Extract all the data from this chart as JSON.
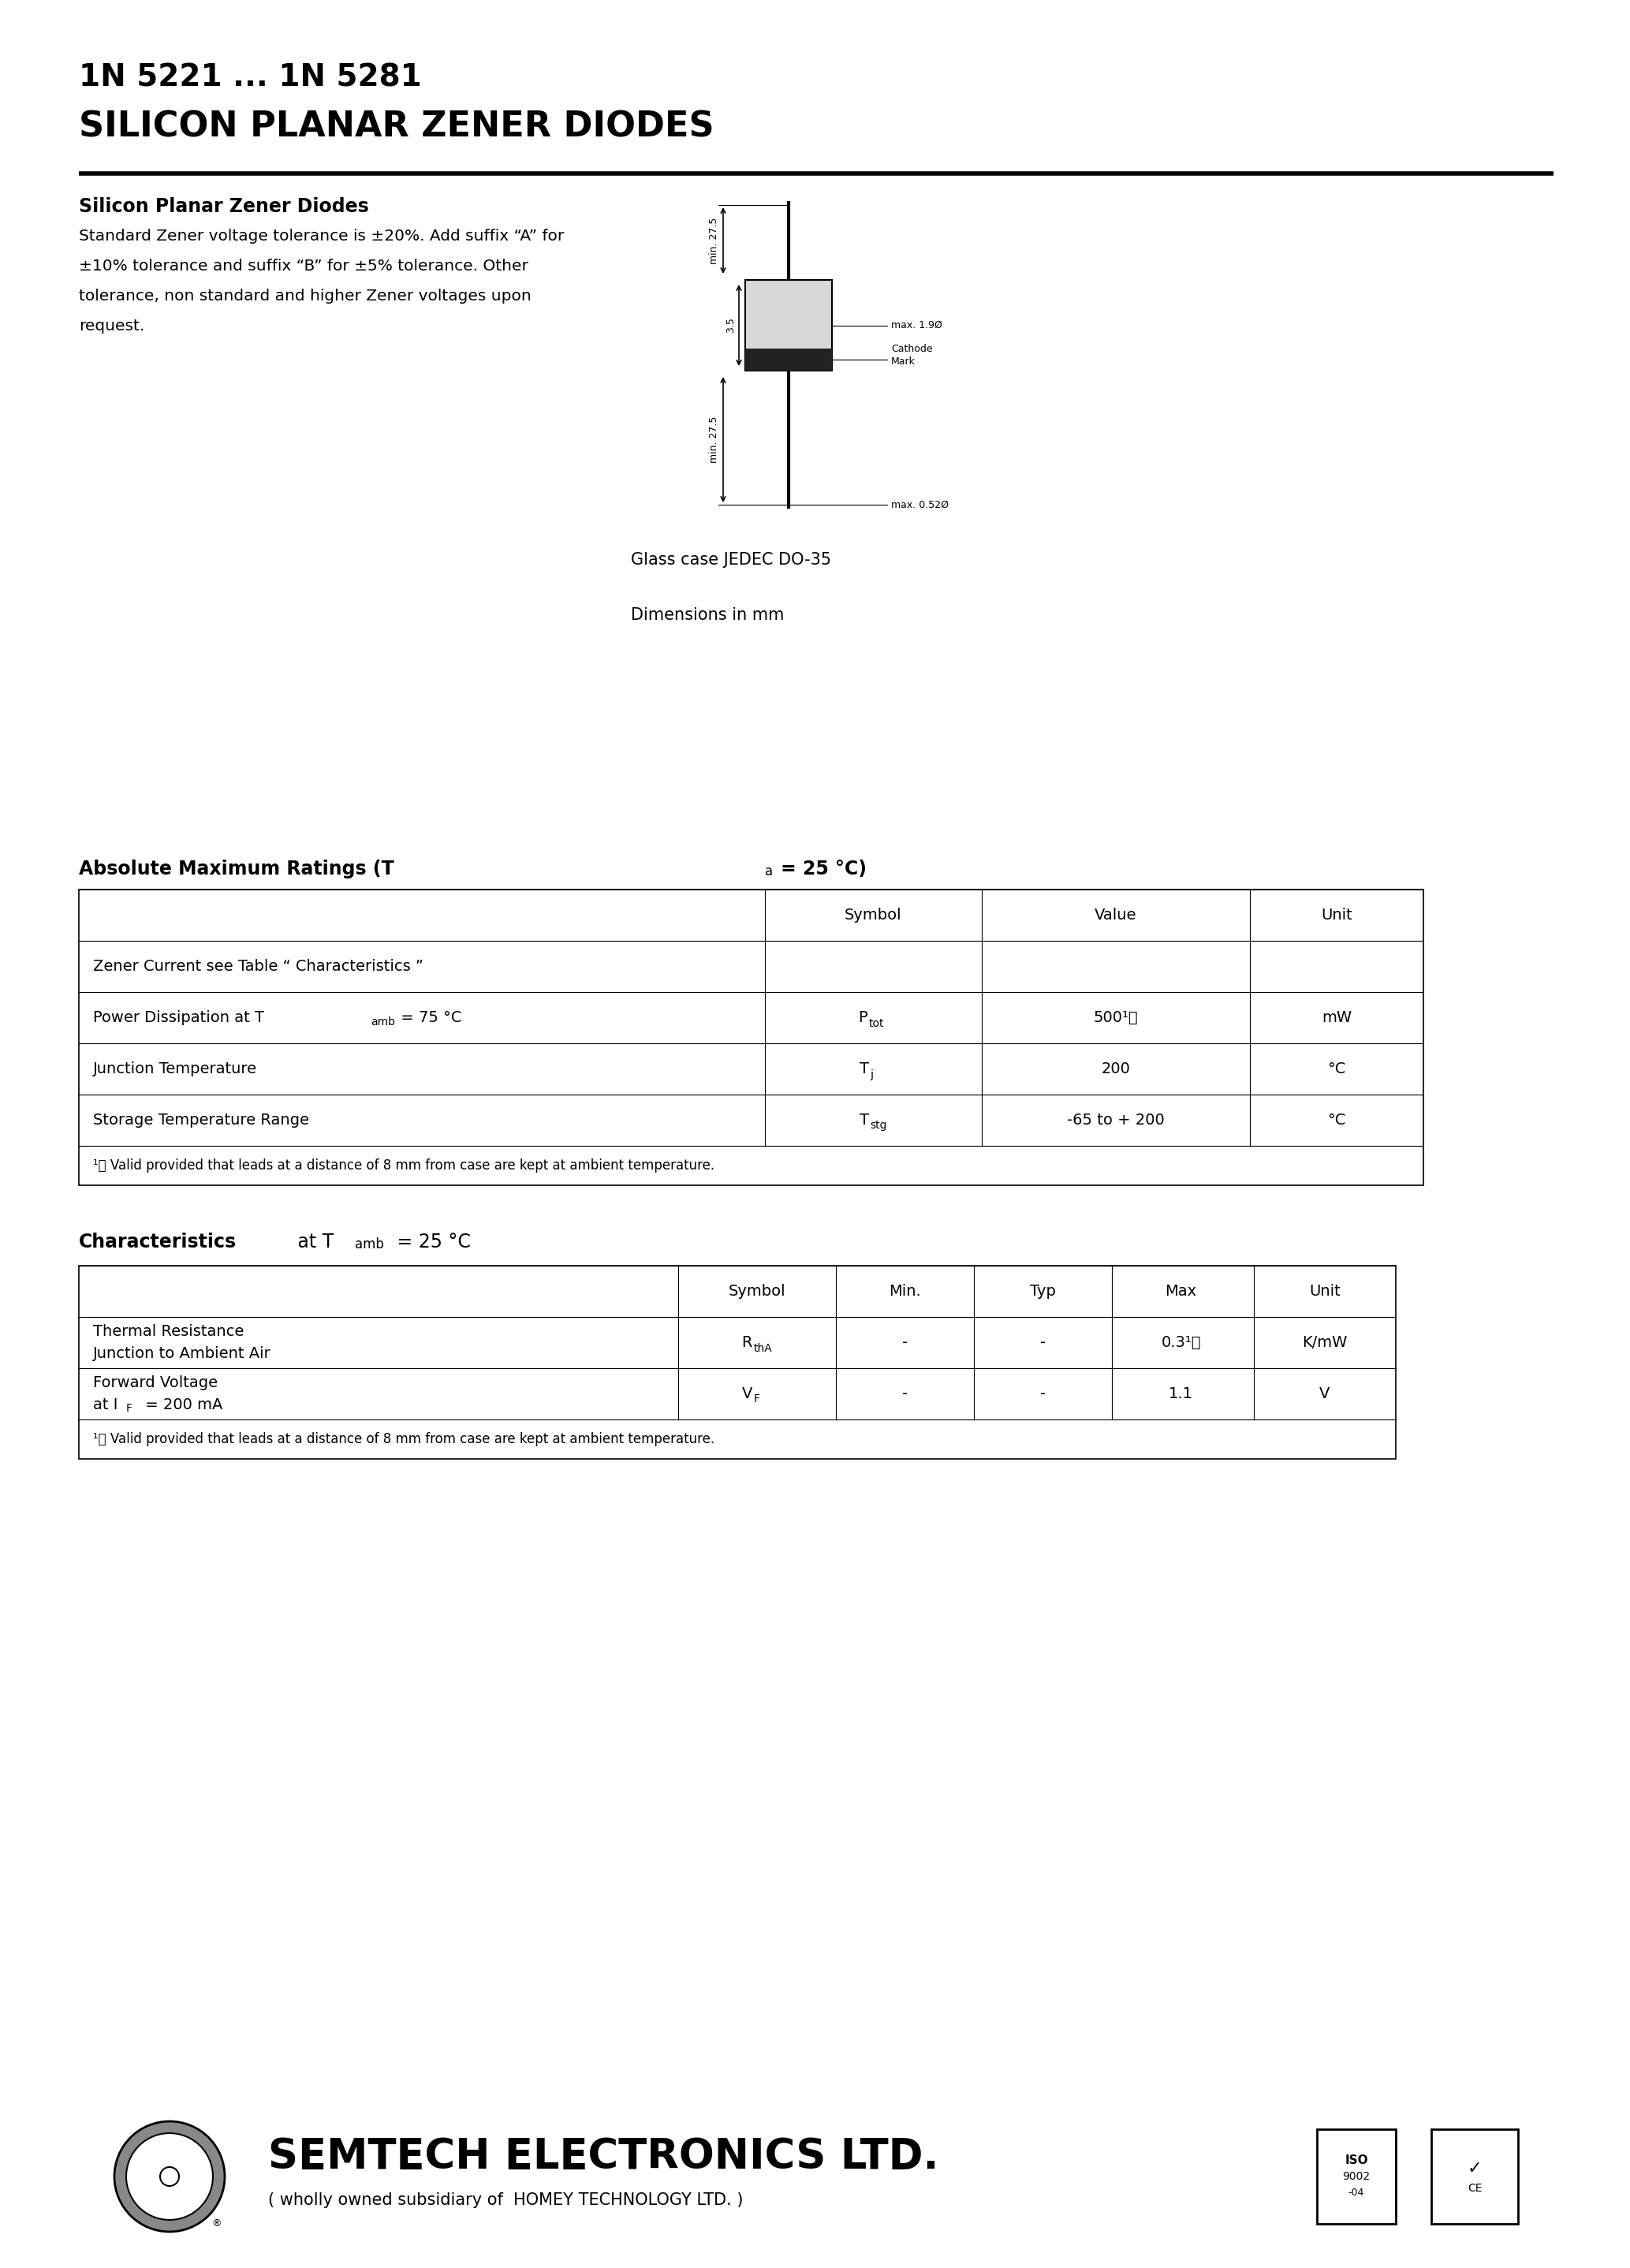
{
  "title_line1": "1N 5221 ... 1N 5281",
  "title_line2": "SILICON PLANAR ZENER DIODES",
  "section1_title": "Silicon Planar Zener Diodes",
  "section1_body_line1": "Standard Zener voltage tolerance is ±20%. Add suffix “A” for",
  "section1_body_line2": "±10% tolerance and suffix “B” for ±5% tolerance. Other",
  "section1_body_line3": "tolerance, non standard and higher Zener voltages upon",
  "section1_body_line4": "request.",
  "glass_case_text": "Glass case JEDEC DO-35",
  "dimensions_text": "Dimensions in mm",
  "abs_max_title": "Absolute Maximum Ratings (T",
  "abs_max_sub": "a",
  "abs_max_end": "= 25 °C)",
  "abs_table_headers": [
    "",
    "Symbol",
    "Value",
    "Unit"
  ],
  "abs_row0_label": "Zener Current see Table “ Characteristics ”",
  "abs_row1_label": "Power Dissipation at T",
  "abs_row1_sub": "amb",
  "abs_row1_end": " = 75 °C",
  "abs_row1_sym": "P",
  "abs_row1_symsub": "tot",
  "abs_row1_val": "500¹⧠",
  "abs_row1_unit": "mW",
  "abs_row2_label": "Junction Temperature",
  "abs_row2_sym": "T",
  "abs_row2_symsub": "j",
  "abs_row2_val": "200",
  "abs_row2_unit": "°C",
  "abs_row3_label": "Storage Temperature Range",
  "abs_row3_sym": "T",
  "abs_row3_symsub": "stg",
  "abs_row3_val": "-65 to + 200",
  "abs_row3_unit": "°C",
  "abs_footnote": "¹⧠ Valid provided that leads at a distance of 8 mm from case are kept at ambient temperature.",
  "char_title": "Characteristics",
  "char_title_at": " at T",
  "char_title_sub": "amb",
  "char_title_end": " = 25 °C",
  "char_table_headers": [
    "",
    "Symbol",
    "Min.",
    "Typ",
    "Max",
    "Unit"
  ],
  "char_row0_label1": "Thermal Resistance",
  "char_row0_label2": "Junction to Ambient Air",
  "char_row0_sym": "R",
  "char_row0_symsub": "thA",
  "char_row0_min": "-",
  "char_row0_typ": "-",
  "char_row0_max": "0.3¹⧠",
  "char_row0_unit": "K/mW",
  "char_row1_label1": "Forward Voltage",
  "char_row1_label2": "at I",
  "char_row1_label2sub": "F",
  "char_row1_label2end": " = 200 mA",
  "char_row1_sym": "V",
  "char_row1_symsub": "F",
  "char_row1_min": "-",
  "char_row1_typ": "-",
  "char_row1_max": "1.1",
  "char_row1_unit": "V",
  "char_footnote": "¹⧠ Valid provided that leads at a distance of 8 mm from case are kept at ambient temperature.",
  "footer_company": "SEMTECH ELECTRONICS LTD.",
  "footer_subsidiary": "( wholly owned subsidiary of  HOMEY TECHNOLOGY LTD. )",
  "bg_color": "#ffffff",
  "text_color": "#000000"
}
